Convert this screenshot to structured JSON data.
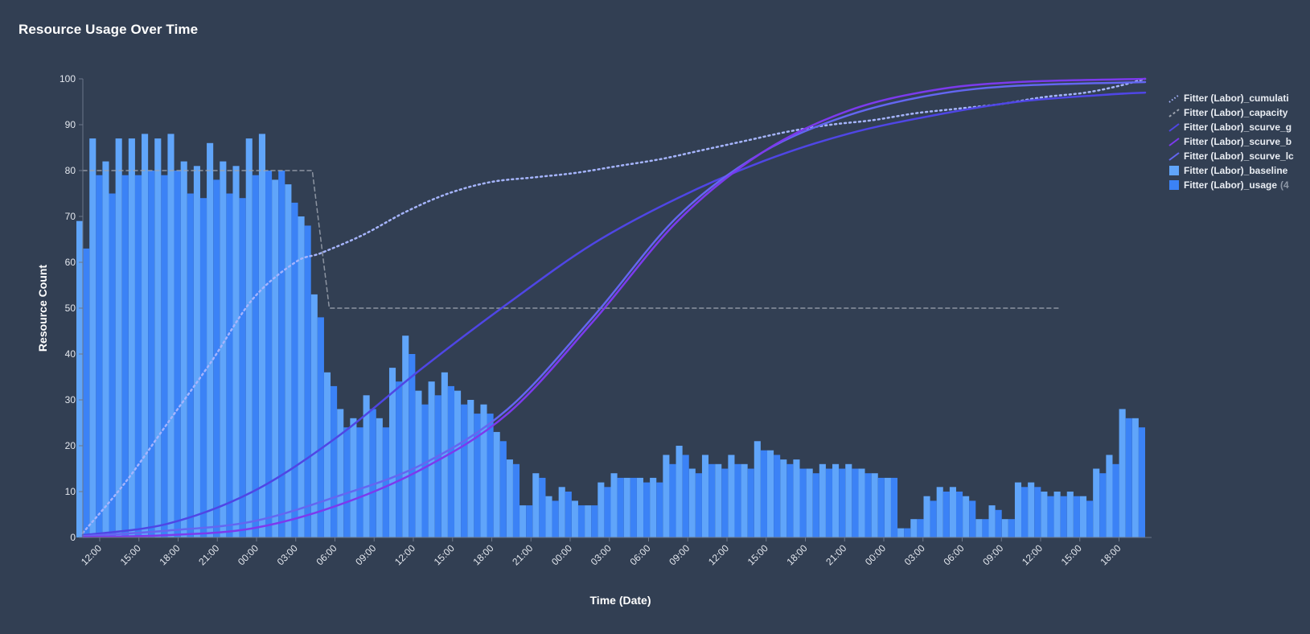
{
  "title": "Resource Usage Over Time",
  "chart_data": {
    "type": "bar",
    "title": "Resource Usage Over Time",
    "xlabel": "Time (Date)",
    "ylabel": "Resource Count",
    "ylim": [
      0,
      100
    ],
    "yticks": [
      0,
      10,
      20,
      30,
      40,
      50,
      60,
      70,
      80,
      90,
      100
    ],
    "x_tick_labels": [
      "12:00",
      "15:00",
      "18:00",
      "21:00",
      "00:00",
      "03:00",
      "06:00",
      "09:00",
      "12:00",
      "15:00",
      "18:00",
      "21:00",
      "00:00",
      "03:00",
      "06:00",
      "09:00",
      "12:00",
      "15:00",
      "18:00",
      "21:00",
      "00:00",
      "03:00",
      "06:00",
      "09:00",
      "12:00",
      "15:00",
      "18:00"
    ],
    "grid": false,
    "legend_position": "right",
    "colors": {
      "background": "#323f53",
      "baseline": "#60a5fa",
      "usage": "#3b82f6",
      "cumulative": "#a5b4fc",
      "capacity": "#9ca3af",
      "scurve_g": "#4f46e5",
      "scurve_b": "#7c3aed",
      "scurve_l": "#6366f1"
    },
    "legend": [
      {
        "key": "cumulative",
        "label": "Fitter (Labor)_cumulati",
        "suffix": "",
        "style": "dotted",
        "color": "#a5b4fc"
      },
      {
        "key": "capacity",
        "label": "Fitter (Labor)_capacity",
        "suffix": "",
        "style": "dashed",
        "color": "#9ca3af"
      },
      {
        "key": "scurve_g",
        "label": "Fitter (Labor)_scurve_g",
        "suffix": "",
        "style": "line",
        "color": "#4f46e5"
      },
      {
        "key": "scurve_b",
        "label": "Fitter (Labor)_scurve_b",
        "suffix": "",
        "style": "line",
        "color": "#7c3aed"
      },
      {
        "key": "scurve_l",
        "label": "Fitter (Labor)_scurve_lc",
        "suffix": "",
        "style": "line",
        "color": "#6366f1"
      },
      {
        "key": "baseline",
        "label": "Fitter (Labor)_baseline",
        "suffix": "",
        "style": "bar",
        "color": "#60a5fa"
      },
      {
        "key": "usage",
        "label": "Fitter (Labor)_usage",
        "suffix": "(4",
        "style": "bar",
        "color": "#3b82f6"
      }
    ],
    "bars": {
      "baseline": [
        69,
        87,
        82,
        87,
        87,
        88,
        87,
        88,
        82,
        81,
        86,
        82,
        81,
        87,
        88,
        78,
        77,
        70,
        53,
        36,
        28,
        26,
        31,
        26,
        37,
        44,
        32,
        34,
        36,
        32,
        30,
        29,
        23,
        17,
        7,
        14,
        9,
        11,
        8,
        7,
        12,
        14,
        13,
        13,
        13,
        18,
        20,
        15,
        18,
        16,
        18,
        16,
        21,
        19,
        17,
        17,
        15,
        16,
        16,
        16,
        15,
        14,
        13,
        2,
        4,
        9,
        11,
        11,
        9,
        4,
        7,
        4,
        12,
        12,
        10,
        10,
        10,
        9,
        15,
        18,
        28,
        26
      ],
      "usage": [
        63,
        79,
        75,
        79,
        79,
        80,
        79,
        80,
        75,
        74,
        78,
        75,
        74,
        79,
        80,
        80,
        73,
        68,
        48,
        33,
        24,
        24,
        28,
        24,
        34,
        40,
        29,
        31,
        33,
        29,
        27,
        27,
        21,
        16,
        7,
        13,
        8,
        10,
        7,
        7,
        11,
        13,
        13,
        12,
        12,
        16,
        18,
        14,
        16,
        15,
        16,
        15,
        19,
        18,
        16,
        15,
        14,
        15,
        15,
        15,
        14,
        13,
        13,
        2,
        4,
        8,
        10,
        10,
        8,
        4,
        6,
        4,
        11,
        11,
        9,
        9,
        9,
        8,
        14,
        16,
        26,
        24
      ]
    },
    "lines": {
      "cumulative": [
        [
          0,
          1
        ],
        [
          5,
          12
        ],
        [
          10,
          25
        ],
        [
          15,
          38
        ],
        [
          20,
          52
        ],
        [
          25,
          60
        ],
        [
          28,
          62
        ],
        [
          33,
          66
        ],
        [
          38,
          71
        ],
        [
          43,
          75
        ],
        [
          48,
          77.5
        ],
        [
          53,
          78.5
        ],
        [
          58,
          79.5
        ],
        [
          63,
          81
        ],
        [
          68,
          82.5
        ],
        [
          73,
          84.5
        ],
        [
          78,
          86.5
        ],
        [
          83,
          88.5
        ],
        [
          88,
          90
        ],
        [
          93,
          91
        ],
        [
          98,
          92.5
        ],
        [
          103,
          93.5
        ],
        [
          108,
          94.5
        ],
        [
          113,
          96
        ],
        [
          118,
          97
        ],
        [
          122,
          98.5
        ],
        [
          125,
          100
        ]
      ],
      "capacity": [
        [
          0,
          80
        ],
        [
          27,
          80
        ],
        [
          29,
          50
        ],
        [
          115,
          50
        ]
      ],
      "scurve_g": [
        [
          0,
          0.5
        ],
        [
          10,
          3
        ],
        [
          20,
          10
        ],
        [
          30,
          22
        ],
        [
          40,
          37
        ],
        [
          50,
          51
        ],
        [
          60,
          64
        ],
        [
          70,
          74
        ],
        [
          80,
          82
        ],
        [
          90,
          88
        ],
        [
          100,
          92
        ],
        [
          110,
          95
        ],
        [
          120,
          96.5
        ],
        [
          125,
          97
        ]
      ],
      "scurve_b": [
        [
          0,
          0.1
        ],
        [
          10,
          0.5
        ],
        [
          20,
          2
        ],
        [
          30,
          7
        ],
        [
          40,
          15
        ],
        [
          50,
          27
        ],
        [
          60,
          47
        ],
        [
          70,
          69
        ],
        [
          80,
          84
        ],
        [
          90,
          93
        ],
        [
          100,
          97.5
        ],
        [
          110,
          99.3
        ],
        [
          125,
          100
        ]
      ],
      "scurve_l": [
        [
          0,
          0.3
        ],
        [
          10,
          1.5
        ],
        [
          20,
          3.5
        ],
        [
          30,
          9
        ],
        [
          40,
          16
        ],
        [
          50,
          28
        ],
        [
          60,
          48
        ],
        [
          70,
          70
        ],
        [
          80,
          84
        ],
        [
          90,
          92
        ],
        [
          100,
          96.5
        ],
        [
          110,
          98.5
        ],
        [
          125,
          99.3
        ]
      ]
    }
  }
}
